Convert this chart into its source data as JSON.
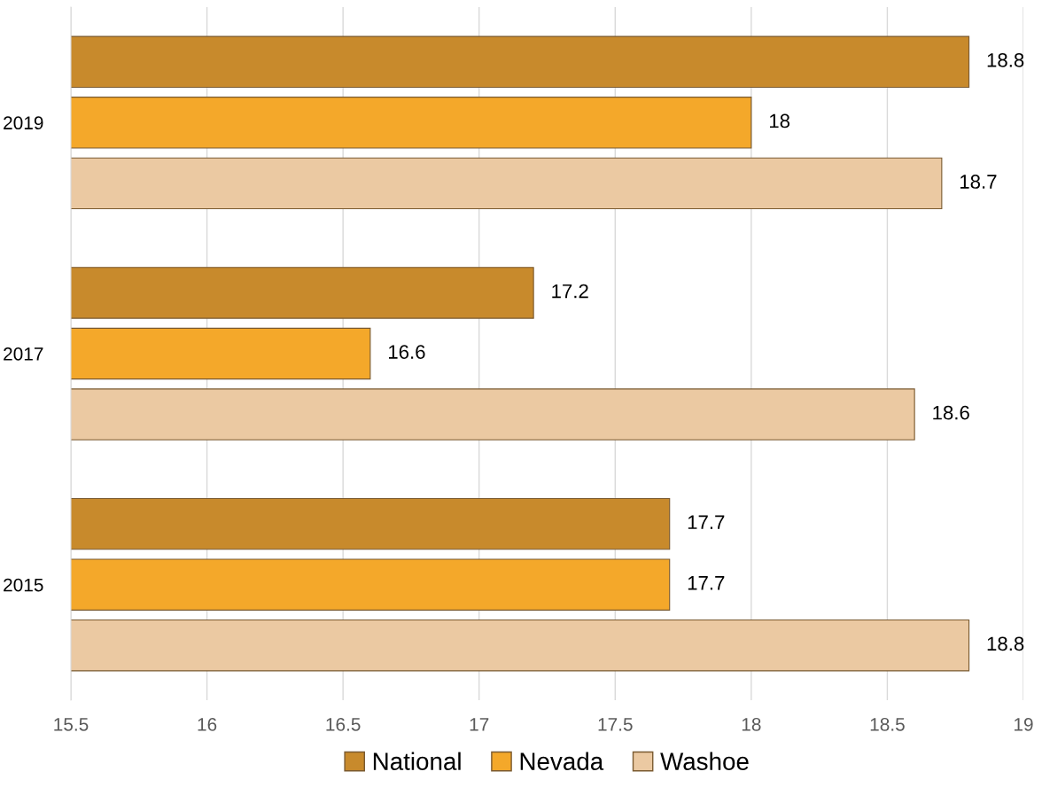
{
  "chart_data": {
    "type": "bar",
    "orientation": "horizontal",
    "categories": [
      "2019",
      "2017",
      "2015"
    ],
    "series": [
      {
        "name": "National",
        "color": "#c88a2c",
        "values": [
          18.8,
          17.2,
          17.7
        ]
      },
      {
        "name": "Nevada",
        "color": "#f4a82a",
        "values": [
          18,
          16.6,
          17.7
        ]
      },
      {
        "name": "Washoe",
        "color": "#ebc9a2",
        "values": [
          18.7,
          18.6,
          18.8
        ]
      }
    ],
    "xlim": [
      15.5,
      19
    ],
    "xticks": [
      15.5,
      16,
      16.5,
      17,
      17.5,
      18,
      18.5,
      19
    ],
    "grid": "x",
    "legend": "bottom",
    "data_labels": true
  }
}
